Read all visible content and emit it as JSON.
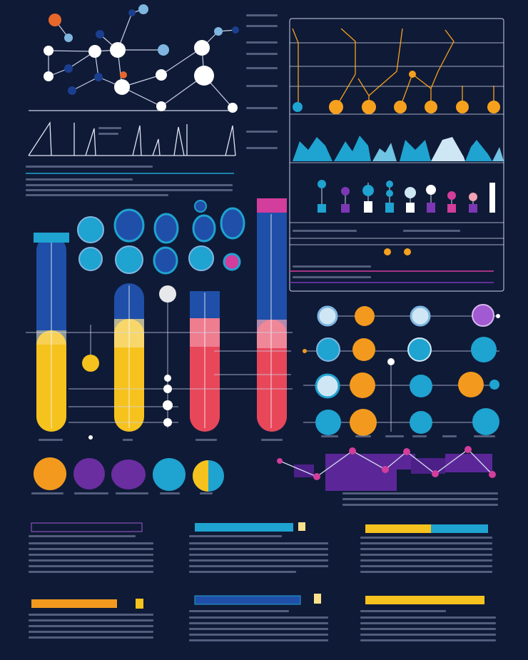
{
  "colors": {
    "background": "#0f1a36",
    "white": "#ffffff",
    "light_blue": "#7fb6e0",
    "cyan": "#1fa3d1",
    "teal": "#18b6cf",
    "blue": "#1f4fa8",
    "navy": "#1b3f8f",
    "orange": "#f39a1e",
    "yellow": "#f6c21d",
    "pale_yellow": "#f9e08c",
    "red": "#e8475a",
    "pink": "#f2a2b4",
    "purple": "#6a2ea0",
    "violet": "#7c38b4",
    "magenta": "#d33d9c",
    "line": "#c9d2e8"
  },
  "icons": {
    "network": "network-graph-icon",
    "test_tube": "test-tube-icon",
    "cell": "cell-icon",
    "molecule": "molecule-icon"
  },
  "panels": {
    "right_top_chart": "line-and-area-chart-panel",
    "node_grid": "circle-node-grid-panel",
    "test_tubes": "test-tube-row",
    "circle_legend": "circle-legend-row",
    "text_columns": "text-column-blocks"
  }
}
